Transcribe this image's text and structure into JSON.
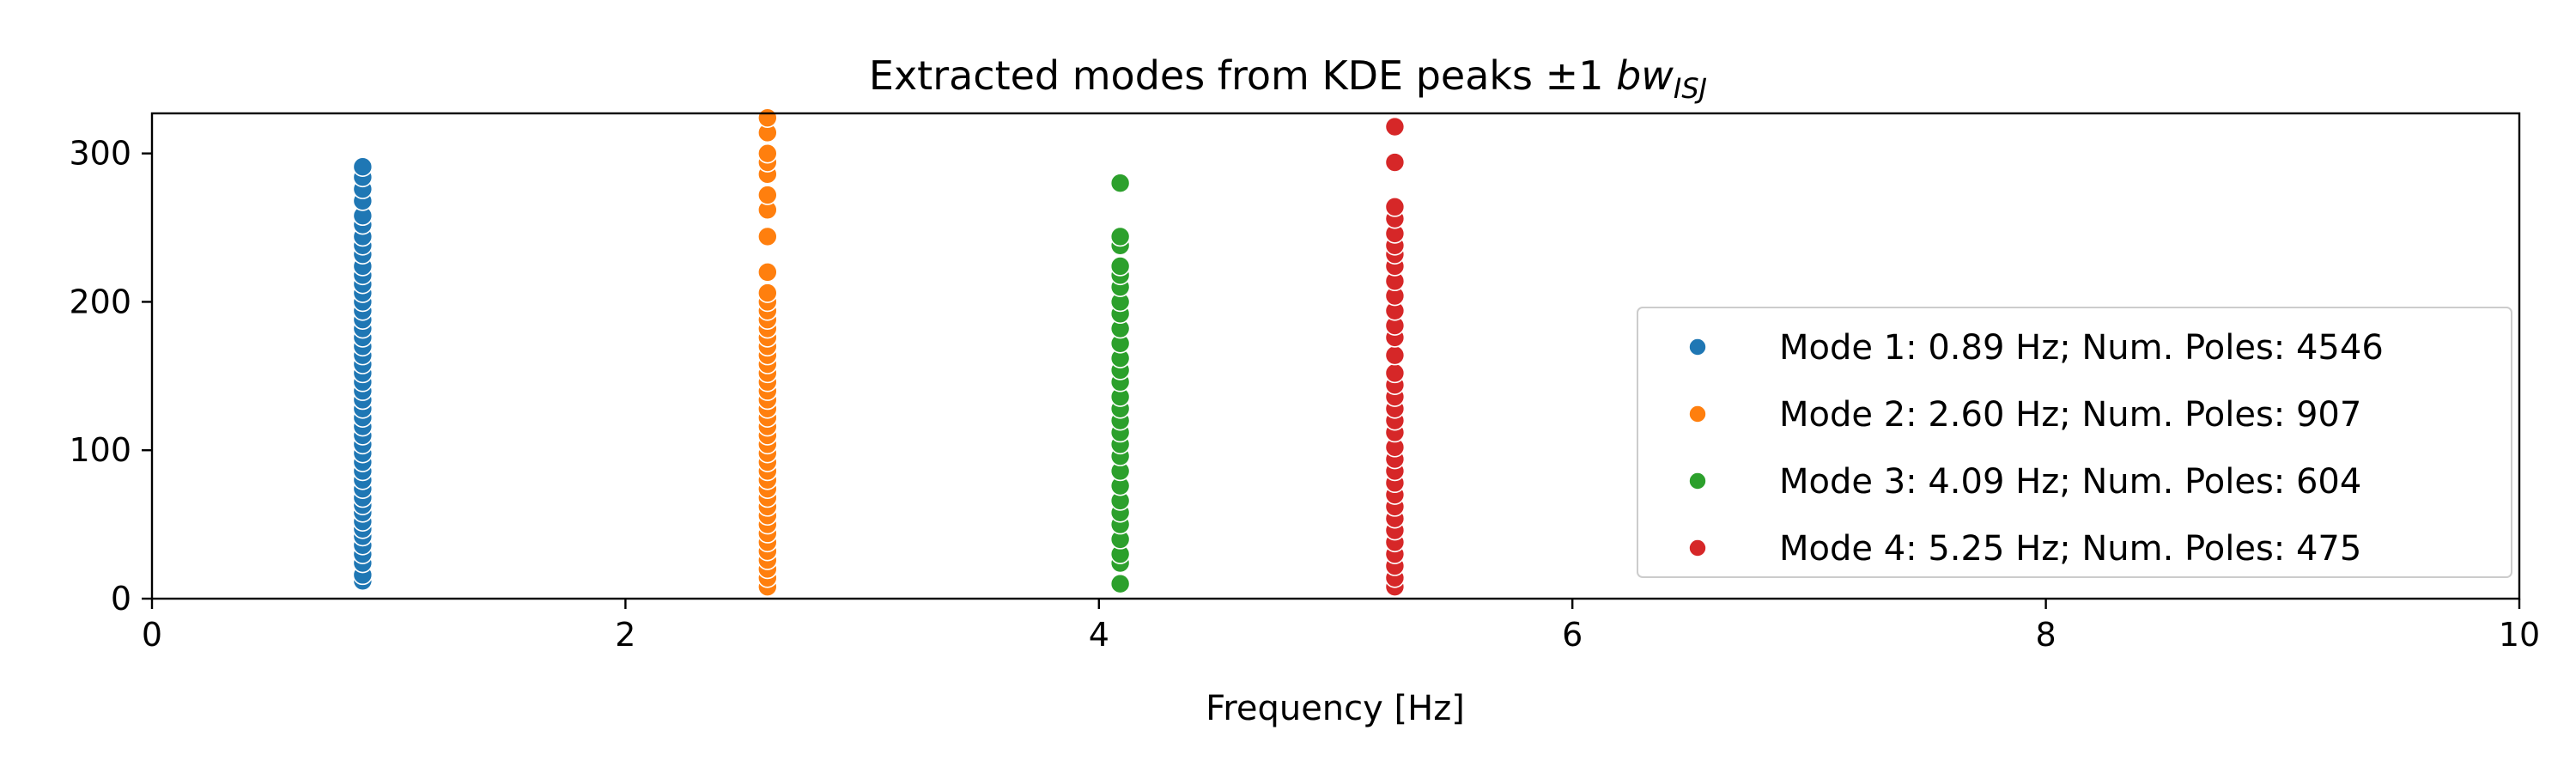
{
  "chart_data": {
    "type": "scatter",
    "title": "Extracted modes from KDE peaks ±1 ",
    "title_math_base": "bw",
    "title_math_sub": "ISJ",
    "xlabel": "Frequency [Hz]",
    "ylabel": "",
    "xlim": [
      0,
      10
    ],
    "ylim": [
      0,
      327
    ],
    "x_ticks": [
      0,
      2,
      4,
      6,
      8,
      10
    ],
    "x_tick_labels": [
      "0",
      "2",
      "4",
      "6",
      "8",
      "10"
    ],
    "y_ticks": [
      0,
      100,
      200,
      300
    ],
    "y_tick_labels": [
      "0",
      "100",
      "200",
      "300"
    ],
    "grid": false,
    "legend_position": "right",
    "series": [
      {
        "name": "Mode 1: 0.89 Hz; Num. Poles: 4546",
        "color": "#1f77b4",
        "x": 0.89,
        "y": [
          12,
          16,
          24,
          30,
          36,
          42,
          47,
          52,
          58,
          63,
          68,
          74,
          80,
          86,
          92,
          98,
          104,
          110,
          116,
          122,
          128,
          134,
          140,
          146,
          152,
          158,
          164,
          170,
          176,
          182,
          188,
          194,
          200,
          206,
          212,
          218,
          224,
          232,
          238,
          244,
          252,
          258,
          268,
          276,
          284,
          291
        ]
      },
      {
        "name": "Mode 2: 2.60 Hz; Num. Poles: 907",
        "color": "#ff7f0e",
        "x": 2.6,
        "y": [
          8,
          14,
          20,
          26,
          32,
          38,
          44,
          50,
          56,
          62,
          68,
          74,
          80,
          86,
          92,
          98,
          104,
          110,
          116,
          122,
          128,
          134,
          140,
          146,
          152,
          158,
          164,
          170,
          176,
          182,
          188,
          194,
          200,
          206,
          220,
          244,
          262,
          272,
          286,
          294,
          300,
          314,
          324
        ]
      },
      {
        "name": "Mode 3: 4.09 Hz; Num. Poles: 604",
        "color": "#2ca02c",
        "x": 4.09,
        "y": [
          10,
          24,
          30,
          40,
          50,
          58,
          66,
          76,
          86,
          96,
          104,
          112,
          120,
          128,
          136,
          146,
          154,
          162,
          172,
          182,
          192,
          200,
          210,
          218,
          224,
          238,
          244,
          280
        ]
      },
      {
        "name": "Mode 4: 5.25 Hz; Num. Poles: 475",
        "color": "#d62728",
        "x": 5.25,
        "y": [
          8,
          14,
          22,
          30,
          38,
          46,
          54,
          62,
          70,
          78,
          86,
          94,
          102,
          112,
          120,
          128,
          136,
          144,
          152,
          164,
          176,
          184,
          194,
          204,
          214,
          224,
          232,
          238,
          246,
          256,
          264,
          294,
          318
        ]
      }
    ]
  }
}
